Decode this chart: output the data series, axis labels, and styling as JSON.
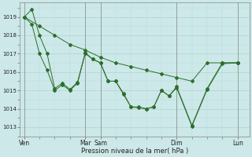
{
  "bg_color": "#cce8e8",
  "grid_color_major": "#aacccc",
  "grid_color_minor": "#bbdddd",
  "line_color": "#2d6e2d",
  "xlabel": "Pression niveau de la mer( hPa )",
  "ylabel_vals": [
    1013,
    1014,
    1015,
    1016,
    1017,
    1018,
    1019
  ],
  "series_long": {
    "x": [
      0,
      1,
      2,
      3,
      4,
      5,
      6,
      7,
      8,
      9,
      10,
      11,
      12,
      13,
      14
    ],
    "y": [
      1019.0,
      1018.5,
      1018.0,
      1017.5,
      1017.2,
      1016.8,
      1016.5,
      1016.3,
      1016.1,
      1015.9,
      1015.7,
      1015.5,
      1016.5,
      1016.5,
      1016.5
    ]
  },
  "series_a": {
    "x": [
      0,
      0.5,
      1.0,
      1.5,
      2.0,
      2.5,
      3.0,
      3.5,
      4.0,
      4.5,
      5.0,
      5.5,
      6.0,
      6.5,
      7.0,
      7.5,
      8.0,
      8.5,
      9.0,
      9.5,
      10.0,
      11.0,
      12.0,
      13.0,
      14.0
    ],
    "y": [
      1019.0,
      1018.6,
      1017.0,
      1016.1,
      1015.0,
      1015.3,
      1015.0,
      1015.4,
      1017.0,
      1016.7,
      1016.5,
      1015.5,
      1015.5,
      1014.8,
      1014.1,
      1014.1,
      1014.0,
      1014.1,
      1015.0,
      1014.7,
      1015.2,
      1013.1,
      1015.1,
      1016.5,
      1016.5
    ]
  },
  "series_b": {
    "x": [
      0,
      0.5,
      1.0,
      1.5,
      2.0,
      2.5,
      3.0,
      3.5,
      4.0,
      4.5,
      5.0,
      5.5,
      6.0,
      6.5,
      7.0,
      7.5,
      8.0,
      8.5,
      9.0,
      9.5,
      10.0,
      11.0,
      12.0,
      13.0,
      14.0
    ],
    "y": [
      1019.0,
      1019.4,
      1018.0,
      1017.0,
      1015.1,
      1015.4,
      1015.05,
      1015.45,
      1017.05,
      1016.7,
      1016.5,
      1015.5,
      1015.5,
      1014.85,
      1014.1,
      1014.05,
      1014.0,
      1014.1,
      1015.0,
      1014.7,
      1015.15,
      1013.05,
      1015.05,
      1016.45,
      1016.5
    ]
  },
  "vline_positions": [
    0,
    4,
    5,
    10,
    14
  ],
  "xtick_positions": [
    0,
    4,
    5,
    10,
    14
  ],
  "xtick_labels": [
    "Ven",
    "Mar",
    "Sam",
    "Dim",
    "Lun"
  ],
  "xlim": [
    -0.3,
    14.8
  ],
  "ylim": [
    1012.5,
    1019.8
  ],
  "figsize": [
    3.2,
    2.0
  ],
  "dpi": 100
}
